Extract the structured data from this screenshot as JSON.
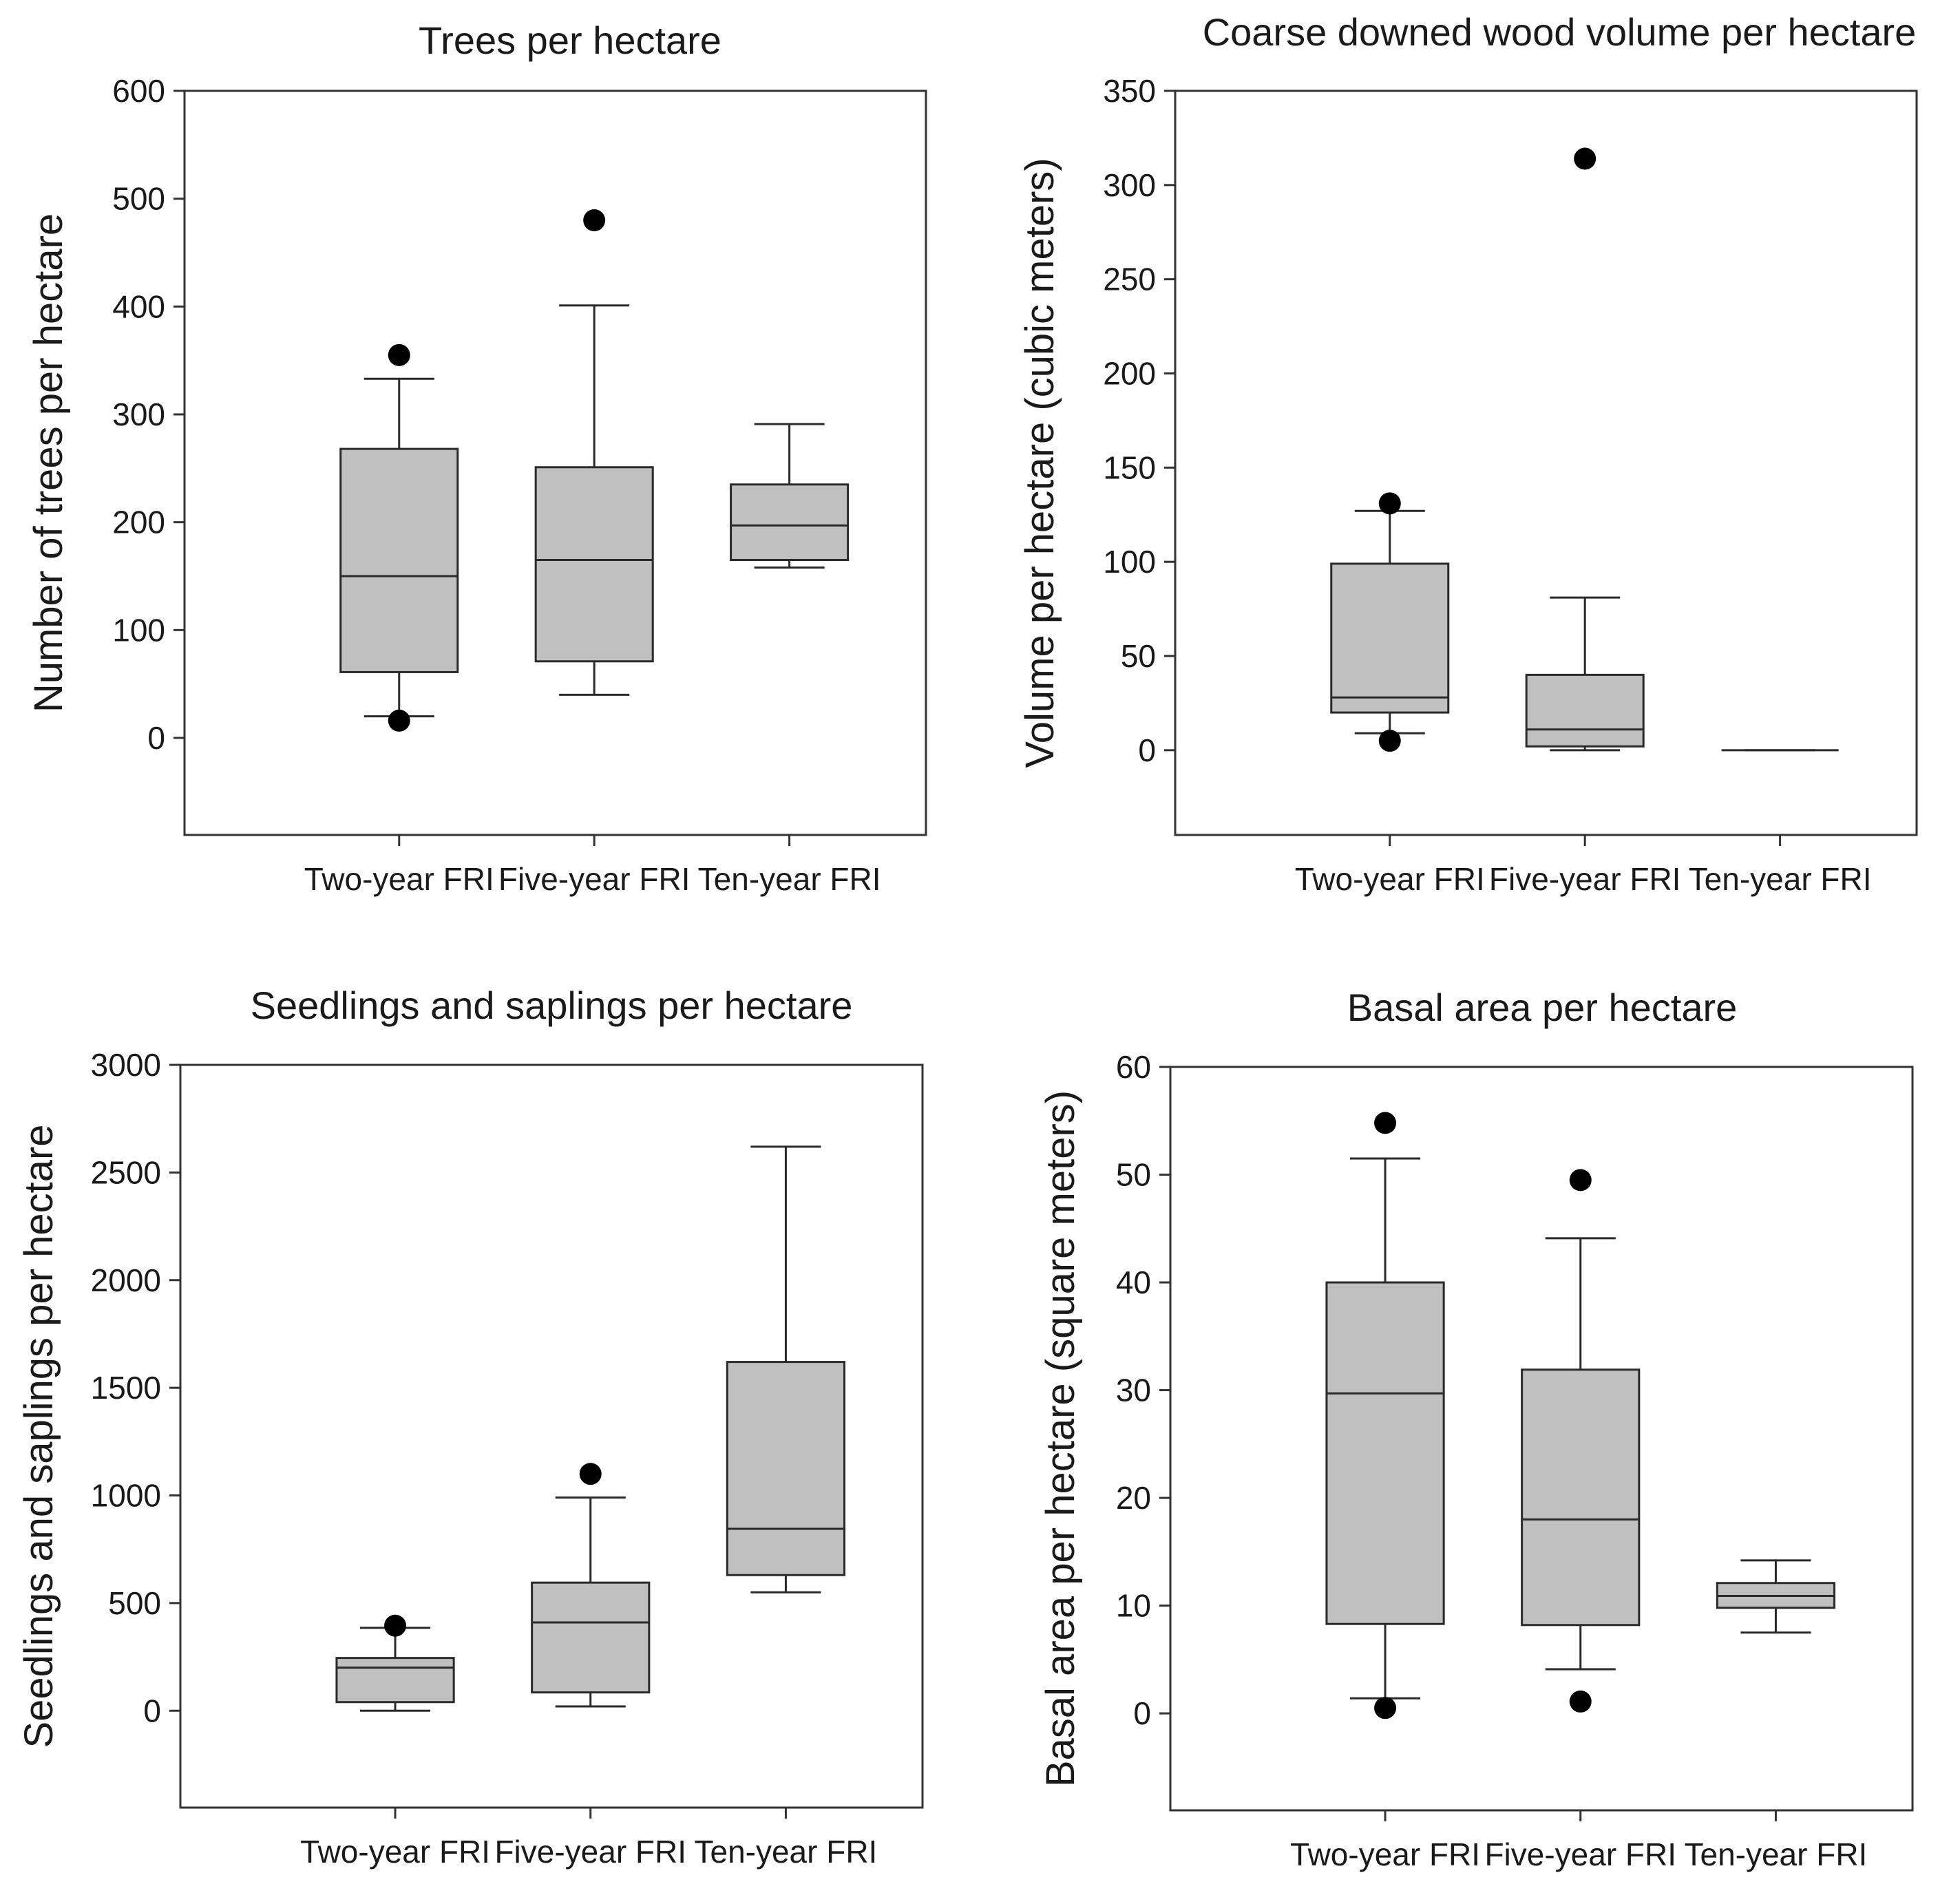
{
  "chart_data": [
    {
      "type": "box",
      "title": "Trees per hectare",
      "xlabel": "",
      "ylabel": "Number of trees per hectare",
      "categories": [
        "Two-year FRI",
        "Five-year FRI",
        "Ten-year FRI"
      ],
      "ylim": [
        -90,
        600
      ],
      "yticks": [
        0,
        100,
        200,
        300,
        400,
        500,
        600
      ],
      "boxes": [
        {
          "category": "Two-year FRI",
          "q1": 61,
          "median": 150,
          "q3": 268,
          "whisker_low": 20,
          "whisker_high": 333,
          "outliers": [
            355,
            16
          ]
        },
        {
          "category": "Five-year FRI",
          "q1": 71,
          "median": 165,
          "q3": 251,
          "whisker_low": 40,
          "whisker_high": 401,
          "outliers": [
            480
          ]
        },
        {
          "category": "Ten-year FRI",
          "q1": 165,
          "median": 197,
          "q3": 235,
          "whisker_low": 158,
          "whisker_high": 291,
          "outliers": []
        }
      ]
    },
    {
      "type": "box",
      "title": "Coarse downed wood volume per hectare",
      "xlabel": "",
      "ylabel": "Volume per hectare (cubic meters)",
      "categories": [
        "Two-year FRI",
        "Five-year FRI",
        "Ten-year FRI"
      ],
      "ylim": [
        -45,
        350
      ],
      "yticks": [
        0,
        50,
        100,
        150,
        200,
        250,
        300,
        350
      ],
      "boxes": [
        {
          "category": "Two-year FRI",
          "q1": 20,
          "median": 28,
          "q3": 99,
          "whisker_low": 9,
          "whisker_high": 127,
          "outliers": [
            131,
            5
          ]
        },
        {
          "category": "Five-year FRI",
          "q1": 2,
          "median": 11,
          "q3": 40,
          "whisker_low": 0,
          "whisker_high": 81,
          "outliers": [
            314
          ]
        },
        {
          "category": "Ten-year FRI",
          "q1": 0,
          "median": 0,
          "q3": 0,
          "whisker_low": 0,
          "whisker_high": 0,
          "outliers": []
        }
      ]
    },
    {
      "type": "box",
      "title": "Seedlings and saplings per hectare",
      "xlabel": "",
      "ylabel": "Seedlings and saplings per hectare",
      "categories": [
        "Two-year FRI",
        "Five-year FRI",
        "Ten-year FRI"
      ],
      "ylim": [
        -450,
        3000
      ],
      "yticks": [
        0,
        500,
        1000,
        1500,
        2000,
        2500,
        3000
      ],
      "boxes": [
        {
          "category": "Two-year FRI",
          "q1": 40,
          "median": 200,
          "q3": 245,
          "whisker_low": 0,
          "whisker_high": 385,
          "outliers": [
            395
          ]
        },
        {
          "category": "Five-year FRI",
          "q1": 85,
          "median": 410,
          "q3": 595,
          "whisker_low": 20,
          "whisker_high": 990,
          "outliers": [
            1100
          ]
        },
        {
          "category": "Ten-year FRI",
          "q1": 630,
          "median": 845,
          "q3": 1620,
          "whisker_low": 550,
          "whisker_high": 2620,
          "outliers": []
        }
      ]
    },
    {
      "type": "box",
      "title": "Basal area per hectare",
      "xlabel": "",
      "ylabel": "Basal area per hectare (square meters)",
      "categories": [
        "Two-year FRI",
        "Five-year FRI",
        "Ten-year FRI"
      ],
      "ylim": [
        -9,
        60
      ],
      "yticks": [
        0,
        10,
        20,
        30,
        40,
        50,
        60
      ],
      "boxes": [
        {
          "category": "Two-year FRI",
          "q1": 8.3,
          "median": 29.7,
          "q3": 40,
          "whisker_low": 1.4,
          "whisker_high": 51.5,
          "outliers": [
            54.8,
            0.5
          ]
        },
        {
          "category": "Five-year FRI",
          "q1": 8.2,
          "median": 18,
          "q3": 31.9,
          "whisker_low": 4.1,
          "whisker_high": 44.1,
          "outliers": [
            49.5,
            1.1
          ]
        },
        {
          "category": "Ten-year FRI",
          "q1": 9.8,
          "median": 10.9,
          "q3": 12.1,
          "whisker_low": 7.5,
          "whisker_high": 14.2,
          "outliers": []
        }
      ]
    }
  ]
}
